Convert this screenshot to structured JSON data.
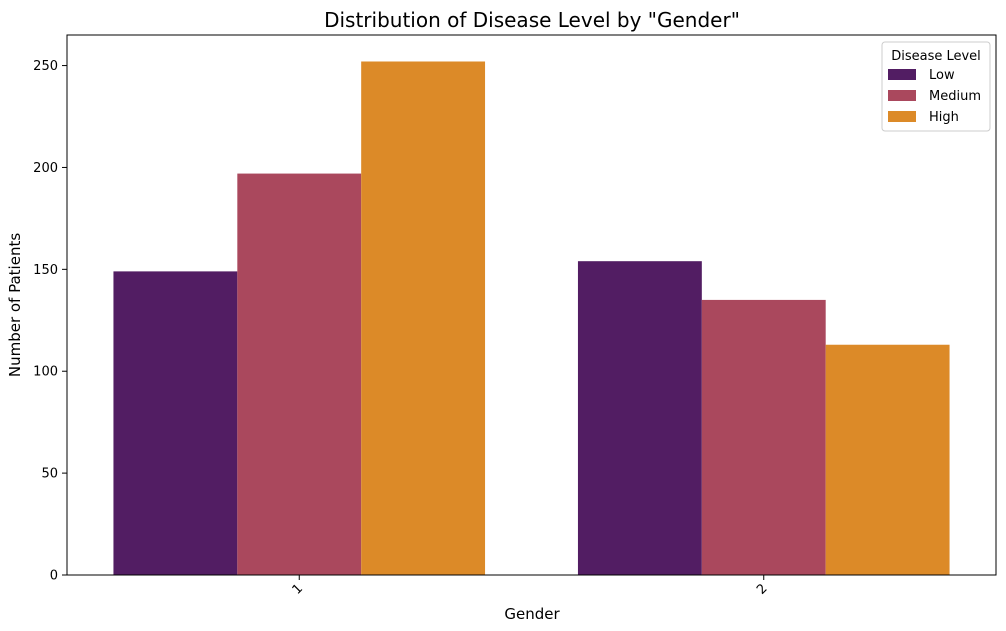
{
  "chart_data": {
    "type": "bar",
    "title": "Distribution of Disease Level by \"Gender\"",
    "xlabel": "Gender",
    "ylabel": "Number of Patients",
    "categories": [
      "1",
      "2"
    ],
    "series": [
      {
        "name": "Low",
        "values": [
          149,
          154
        ],
        "color": "#521d63"
      },
      {
        "name": "Medium",
        "values": [
          197,
          135
        ],
        "color": "#aa485d"
      },
      {
        "name": "High",
        "values": [
          252,
          113
        ],
        "color": "#dc8a28"
      }
    ],
    "ylim": [
      0,
      265
    ],
    "yticks": [
      0,
      50,
      100,
      150,
      200,
      250
    ],
    "legend_title": "Disease Level",
    "legend_position": "top-right",
    "grid": false
  }
}
